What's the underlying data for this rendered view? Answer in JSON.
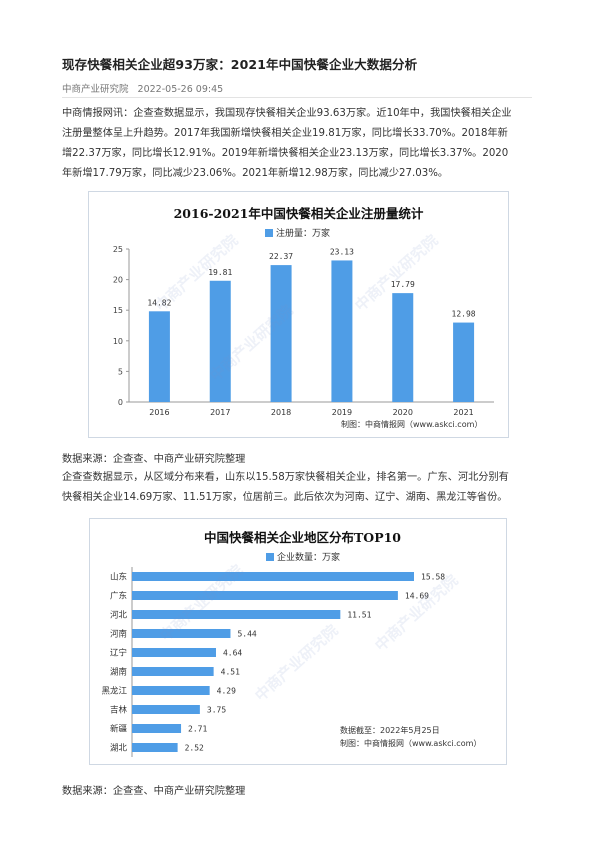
{
  "article": {
    "title": "现存快餐相关企业超93万家：2021年中国快餐企业大数据分析",
    "source": "中商产业研究院",
    "date": "2022-05-26 09:45",
    "para1_lines": [
      "中商情报网讯：企查查数据显示，我国现存快餐相关企业93.63万家。近10年中，我国快餐相关企业",
      "注册量整体呈上升趋势。2017年我国新增快餐相关企业19.81万家，同比增长33.70%。2018年新",
      "增22.37万家，同比增长12.91%。2019年新增快餐相关企业23.13万家，同比增长3.37%。2020",
      "年新增17.79万家，同比减少23.06%。2021年新增12.98万家，同比减少27.03%。"
    ],
    "caption1": "数据来源：企查查、中商产业研究院整理",
    "para2_lines": [
      "企查查数据显示，从区域分布来看，山东以15.58万家快餐相关企业，排名第一。广东、河北分别有",
      "快餐相关企业14.69万家、11.51万家，位居前三。此后依次为河南、辽宁、湖南、黑龙江等省份。"
    ],
    "caption2": "数据来源：企查查、中商产业研究院整理"
  },
  "watermark_text": "中商产业研究院",
  "chart_data": [
    {
      "type": "bar",
      "title": "2016-2021年中国快餐相关企业注册量统计",
      "legend": "注册量：万家",
      "categories": [
        "2016",
        "2017",
        "2018",
        "2019",
        "2020",
        "2021"
      ],
      "values": [
        14.82,
        19.81,
        22.37,
        23.13,
        17.79,
        12.98
      ],
      "value_labels": [
        "14.82",
        "19.81",
        "22.37",
        "23.13",
        "17.79",
        "12.98"
      ],
      "ylim": [
        0,
        25
      ],
      "yticks": [
        "0",
        "5",
        "10",
        "15",
        "20",
        "25"
      ],
      "grid": false,
      "bar_color": "#4f9de6",
      "credit": "制图：中商情报网（www.askci.com）"
    },
    {
      "type": "bar",
      "orientation": "horizontal",
      "title": "中国快餐相关企业地区分布TOP10",
      "legend": "企业数量：万家",
      "categories": [
        "山东",
        "广东",
        "河北",
        "河南",
        "辽宁",
        "湖南",
        "黑龙江",
        "吉林",
        "新疆",
        "湖北"
      ],
      "values": [
        15.58,
        14.69,
        11.51,
        5.44,
        4.64,
        4.51,
        4.29,
        3.75,
        2.71,
        2.52
      ],
      "value_labels": [
        "15.58",
        "14.69",
        "11.51",
        "5.44",
        "4.64",
        "4.51",
        "4.29",
        "3.75",
        "2.71",
        "2.52"
      ],
      "bar_color": "#4f9de6",
      "grid": false,
      "date_note": "数据截至：2022年5月25日",
      "credit": "制图：中商情报网（www.askci.com）"
    }
  ]
}
